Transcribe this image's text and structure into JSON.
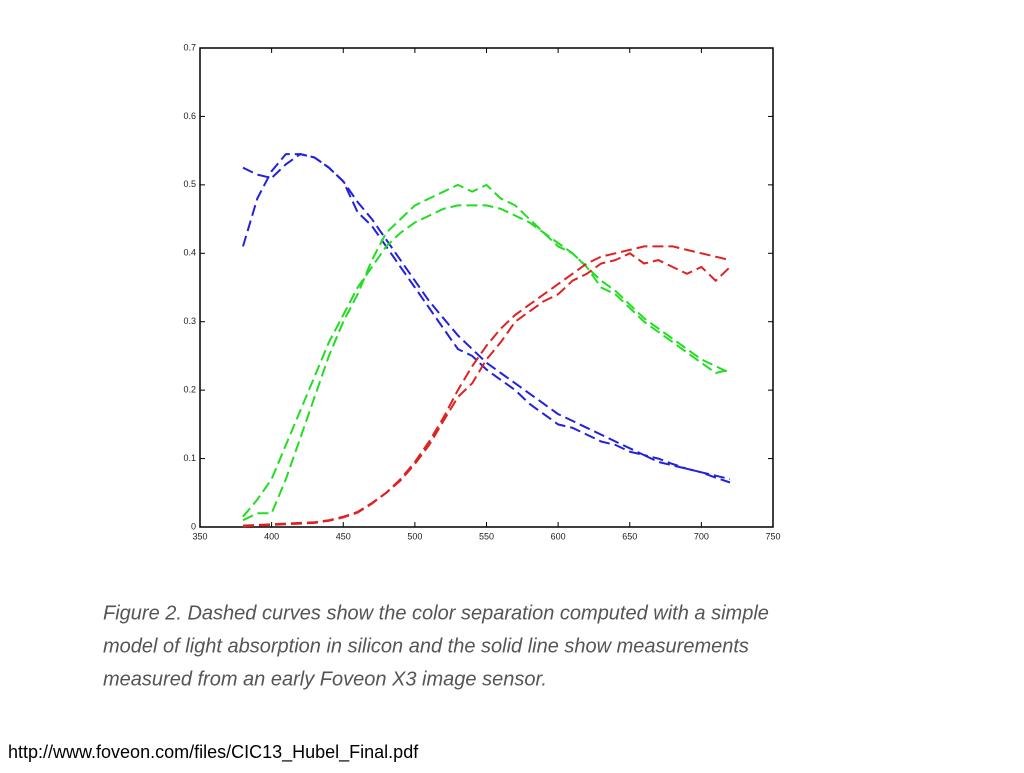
{
  "chart_data": {
    "type": "line",
    "x": [
      380,
      390,
      400,
      410,
      420,
      430,
      440,
      450,
      460,
      470,
      480,
      490,
      500,
      510,
      520,
      530,
      540,
      550,
      560,
      570,
      580,
      590,
      600,
      610,
      620,
      630,
      640,
      650,
      660,
      670,
      680,
      690,
      700,
      710,
      720
    ],
    "series": [
      {
        "color": "#2222dd",
        "values": [
          0.525,
          0.515,
          0.51,
          0.53,
          0.545,
          0.54,
          0.525,
          0.505,
          0.475,
          0.45,
          0.42,
          0.39,
          0.36,
          0.33,
          0.305,
          0.28,
          0.26,
          0.24,
          0.225,
          0.21,
          0.195,
          0.18,
          0.165,
          0.155,
          0.145,
          0.135,
          0.125,
          0.115,
          0.105,
          0.1,
          0.092,
          0.085,
          0.08,
          0.075,
          0.07
        ]
      },
      {
        "color": "#2222dd",
        "values": [
          0.41,
          0.48,
          0.52,
          0.545,
          0.545,
          0.54,
          0.525,
          0.505,
          0.46,
          0.44,
          0.41,
          0.38,
          0.35,
          0.32,
          0.29,
          0.26,
          0.25,
          0.23,
          0.215,
          0.2,
          0.18,
          0.165,
          0.15,
          0.145,
          0.135,
          0.125,
          0.12,
          0.11,
          0.105,
          0.095,
          0.09,
          0.085,
          0.08,
          0.072,
          0.065
        ]
      },
      {
        "color": "#22dd22",
        "values": [
          0.015,
          0.04,
          0.07,
          0.12,
          0.17,
          0.22,
          0.27,
          0.31,
          0.35,
          0.38,
          0.41,
          0.43,
          0.445,
          0.455,
          0.465,
          0.47,
          0.47,
          0.47,
          0.465,
          0.455,
          0.445,
          0.43,
          0.415,
          0.4,
          0.38,
          0.36,
          0.345,
          0.325,
          0.305,
          0.29,
          0.275,
          0.26,
          0.245,
          0.235,
          0.225
        ]
      },
      {
        "color": "#22dd22",
        "values": [
          0.01,
          0.02,
          0.02,
          0.07,
          0.13,
          0.19,
          0.25,
          0.3,
          0.34,
          0.39,
          0.43,
          0.45,
          0.47,
          0.48,
          0.49,
          0.5,
          0.49,
          0.5,
          0.48,
          0.47,
          0.45,
          0.43,
          0.41,
          0.4,
          0.38,
          0.35,
          0.34,
          0.32,
          0.3,
          0.285,
          0.27,
          0.255,
          0.24,
          0.225,
          0.23
        ]
      },
      {
        "color": "#dd2222",
        "values": [
          0.002,
          0.003,
          0.004,
          0.005,
          0.006,
          0.007,
          0.01,
          0.015,
          0.022,
          0.035,
          0.05,
          0.07,
          0.095,
          0.125,
          0.16,
          0.2,
          0.235,
          0.265,
          0.29,
          0.31,
          0.325,
          0.34,
          0.355,
          0.37,
          0.385,
          0.395,
          0.4,
          0.405,
          0.41,
          0.41,
          0.41,
          0.405,
          0.4,
          0.395,
          0.39
        ]
      },
      {
        "color": "#dd2222",
        "values": [
          0.001,
          0.002,
          0.003,
          0.004,
          0.005,
          0.006,
          0.009,
          0.014,
          0.021,
          0.034,
          0.05,
          0.068,
          0.092,
          0.12,
          0.155,
          0.19,
          0.21,
          0.245,
          0.27,
          0.3,
          0.315,
          0.33,
          0.34,
          0.36,
          0.37,
          0.385,
          0.39,
          0.4,
          0.385,
          0.39,
          0.38,
          0.37,
          0.38,
          0.36,
          0.38
        ]
      }
    ],
    "xlim": [
      350,
      750
    ],
    "xticks": [
      350,
      400,
      450,
      500,
      550,
      600,
      650,
      700,
      750
    ],
    "ylim": [
      0,
      0.7
    ],
    "yticks": [
      0,
      0.1,
      0.2,
      0.3,
      0.4,
      0.5,
      0.6,
      0.7
    ]
  },
  "caption": [
    "Figure 2. Dashed curves show the color separation computed with a simple",
    "model of light absorption in silicon and the solid line show measurements",
    "measured from an early Foveon X3 image sensor."
  ],
  "source_url": "http://www.foveon.com/files/CIC13_Hubel_Final.pdf"
}
